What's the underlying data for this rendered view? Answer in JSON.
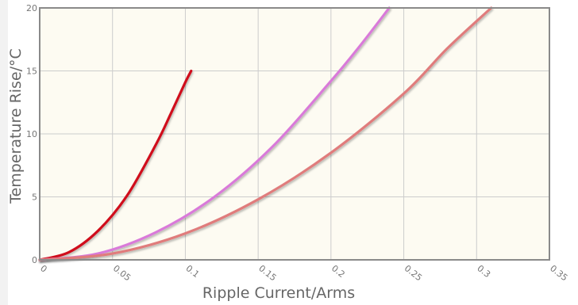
{
  "chart_data": {
    "type": "line",
    "title": "",
    "xlabel": "Ripple Current/Arms",
    "ylabel": "Temperature Rise/°C",
    "xlim": [
      0,
      0.35
    ],
    "ylim": [
      0,
      20
    ],
    "xticks": [
      "0",
      "0.05",
      "0.1",
      "0.15",
      "0.2",
      "0.25",
      "0.3",
      "0.35"
    ],
    "xtick_values": [
      0,
      0.05,
      0.1,
      0.15,
      0.2,
      0.25,
      0.3,
      0.35
    ],
    "yticks": [
      "0",
      "5",
      "10",
      "15",
      "20"
    ],
    "ytick_values": [
      0,
      5,
      10,
      15,
      20
    ],
    "grid": true,
    "colors": {
      "plot_background": "#fdfbf2",
      "grid": "#cccccc",
      "frame": "#8a8a8a"
    },
    "series": [
      {
        "color": "#d0111a",
        "points": [
          [
            0,
            0
          ],
          [
            0.02,
            0.6
          ],
          [
            0.04,
            2.3
          ],
          [
            0.06,
            5.1
          ],
          [
            0.08,
            9.2
          ],
          [
            0.09,
            11.6
          ],
          [
            0.1,
            14.1
          ],
          [
            0.104,
            15.0
          ]
        ]
      },
      {
        "color": "#d97ad9",
        "points": [
          [
            0,
            0
          ],
          [
            0.04,
            0.5
          ],
          [
            0.08,
            2.2
          ],
          [
            0.12,
            5.0
          ],
          [
            0.16,
            9.0
          ],
          [
            0.2,
            14.2
          ],
          [
            0.22,
            17.0
          ],
          [
            0.24,
            20.0
          ]
        ]
      },
      {
        "color": "#e07b7b",
        "points": [
          [
            0,
            0
          ],
          [
            0.05,
            0.5
          ],
          [
            0.1,
            2.1
          ],
          [
            0.15,
            4.8
          ],
          [
            0.2,
            8.5
          ],
          [
            0.25,
            13.2
          ],
          [
            0.28,
            16.8
          ],
          [
            0.31,
            20.0
          ]
        ]
      }
    ]
  }
}
